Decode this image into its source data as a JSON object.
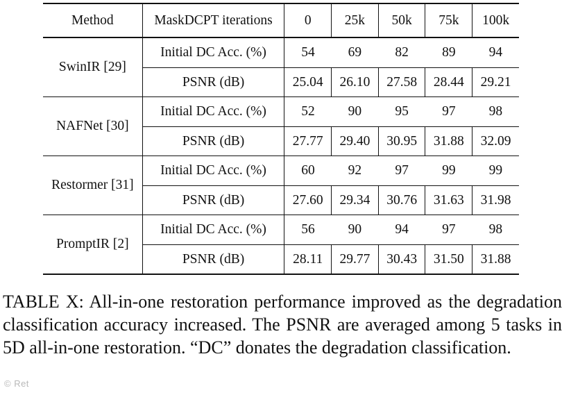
{
  "table": {
    "header": {
      "method": "Method",
      "metric": "MaskDCPT iterations",
      "iterations": [
        "0",
        "25k",
        "50k",
        "75k",
        "100k"
      ]
    },
    "metric_labels": {
      "acc": "Initial DC Acc. (%)",
      "psnr": "PSNR (dB)"
    },
    "rows": [
      {
        "method": "SwinIR [29]",
        "acc": [
          "54",
          "69",
          "82",
          "89",
          "94"
        ],
        "psnr": [
          "25.04",
          "26.10",
          "27.58",
          "28.44",
          "29.21"
        ]
      },
      {
        "method": "NAFNet [30]",
        "acc": [
          "52",
          "90",
          "95",
          "97",
          "98"
        ],
        "psnr": [
          "27.77",
          "29.40",
          "30.95",
          "31.88",
          "32.09"
        ]
      },
      {
        "method": "Restormer [31]",
        "acc": [
          "60",
          "92",
          "97",
          "99",
          "99"
        ],
        "psnr": [
          "27.60",
          "29.34",
          "30.76",
          "31.63",
          "31.98"
        ]
      },
      {
        "method": "PromptIR [2]",
        "acc": [
          "56",
          "90",
          "94",
          "97",
          "98"
        ],
        "psnr": [
          "28.11",
          "29.77",
          "30.43",
          "31.50",
          "31.88"
        ]
      }
    ]
  },
  "caption": "TABLE X: All-in-one restoration performance improved as the degradation classification accuracy increased. The PSNR are averaged among 5 tasks in 5D all-in-one restoration. “DC” donates the degradation classification.",
  "watermark": "© Ret"
}
